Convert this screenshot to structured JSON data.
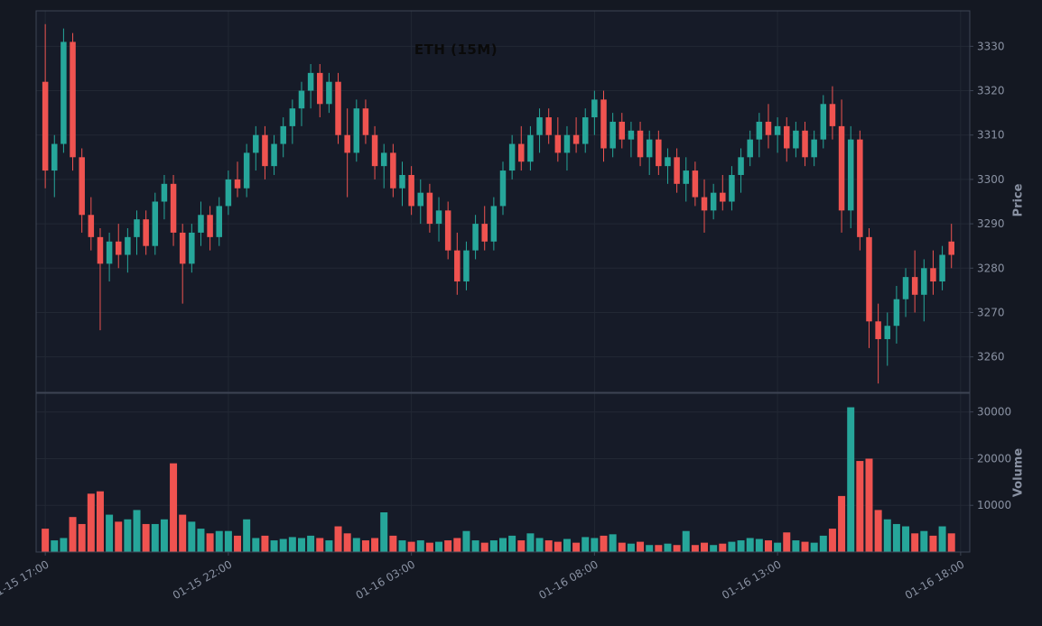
{
  "chart_data": {
    "type": "candlestick",
    "title": "ETH (15M)",
    "symbol": "ETH",
    "interval": "15M",
    "price_axis_label": "Price",
    "volume_axis_label": "Volume",
    "legend_position": "none",
    "grid": true,
    "x_tick_labels": [
      "01-15 17:00",
      "01-15 22:00",
      "01-16 03:00",
      "01-16 08:00",
      "01-16 13:00",
      "01-16 18:00"
    ],
    "x_tick_indices": [
      0,
      20,
      40,
      60,
      80,
      100
    ],
    "price_ticks": [
      3260,
      3270,
      3280,
      3290,
      3300,
      3310,
      3320,
      3330
    ],
    "volume_ticks": [
      10000,
      20000,
      30000
    ],
    "price_range": [
      3252,
      3338
    ],
    "volume_range": [
      0,
      34000
    ],
    "colors": {
      "up": "#26a69a",
      "down": "#ef5350",
      "figure_background": "#141822",
      "axes_background": "#161b28",
      "grid": "#222834",
      "spine": "#3d4454",
      "tick_text": "#8a92a3",
      "title_text": "#0a0a0a"
    },
    "candles": [
      [
        3322,
        3335,
        3298,
        3302
      ],
      [
        3302,
        3310,
        3296,
        3308
      ],
      [
        3308,
        3334,
        3306,
        3331
      ],
      [
        3331,
        3333,
        3302,
        3305
      ],
      [
        3305,
        3307,
        3288,
        3292
      ],
      [
        3292,
        3296,
        3284,
        3287
      ],
      [
        3287,
        3289,
        3266,
        3281
      ],
      [
        3281,
        3288,
        3277,
        3286
      ],
      [
        3286,
        3290,
        3280,
        3283
      ],
      [
        3283,
        3289,
        3279,
        3287
      ],
      [
        3287,
        3293,
        3283,
        3291
      ],
      [
        3291,
        3293,
        3283,
        3285
      ],
      [
        3285,
        3297,
        3283,
        3295
      ],
      [
        3295,
        3301,
        3291,
        3299
      ],
      [
        3299,
        3301,
        3285,
        3288
      ],
      [
        3288,
        3290,
        3272,
        3281
      ],
      [
        3281,
        3290,
        3279,
        3288
      ],
      [
        3288,
        3295,
        3285,
        3292
      ],
      [
        3292,
        3294,
        3284,
        3287
      ],
      [
        3287,
        3296,
        3285,
        3294
      ],
      [
        3294,
        3302,
        3292,
        3300
      ],
      [
        3300,
        3304,
        3296,
        3298
      ],
      [
        3298,
        3308,
        3296,
        3306
      ],
      [
        3306,
        3312,
        3302,
        3310
      ],
      [
        3310,
        3312,
        3300,
        3303
      ],
      [
        3303,
        3310,
        3301,
        3308
      ],
      [
        3308,
        3314,
        3305,
        3312
      ],
      [
        3312,
        3318,
        3308,
        3316
      ],
      [
        3316,
        3322,
        3312,
        3320
      ],
      [
        3320,
        3326,
        3316,
        3324
      ],
      [
        3324,
        3326,
        3314,
        3317
      ],
      [
        3317,
        3324,
        3315,
        3322
      ],
      [
        3322,
        3324,
        3308,
        3310
      ],
      [
        3310,
        3316,
        3296,
        3306
      ],
      [
        3306,
        3318,
        3304,
        3316
      ],
      [
        3316,
        3318,
        3308,
        3310
      ],
      [
        3310,
        3312,
        3300,
        3303
      ],
      [
        3303,
        3308,
        3298,
        3306
      ],
      [
        3306,
        3308,
        3296,
        3298
      ],
      [
        3298,
        3304,
        3294,
        3301
      ],
      [
        3301,
        3303,
        3292,
        3294
      ],
      [
        3294,
        3300,
        3290,
        3297
      ],
      [
        3297,
        3299,
        3288,
        3290
      ],
      [
        3290,
        3296,
        3286,
        3293
      ],
      [
        3293,
        3295,
        3282,
        3284
      ],
      [
        3284,
        3288,
        3274,
        3277
      ],
      [
        3277,
        3286,
        3275,
        3284
      ],
      [
        3284,
        3292,
        3282,
        3290
      ],
      [
        3290,
        3294,
        3284,
        3286
      ],
      [
        3286,
        3296,
        3284,
        3294
      ],
      [
        3294,
        3304,
        3292,
        3302
      ],
      [
        3302,
        3310,
        3300,
        3308
      ],
      [
        3308,
        3312,
        3302,
        3304
      ],
      [
        3304,
        3312,
        3302,
        3310
      ],
      [
        3310,
        3316,
        3306,
        3314
      ],
      [
        3314,
        3316,
        3308,
        3310
      ],
      [
        3310,
        3314,
        3304,
        3306
      ],
      [
        3306,
        3312,
        3302,
        3310
      ],
      [
        3310,
        3314,
        3306,
        3308
      ],
      [
        3308,
        3316,
        3306,
        3314
      ],
      [
        3314,
        3320,
        3310,
        3318
      ],
      [
        3318,
        3320,
        3304,
        3307
      ],
      [
        3307,
        3315,
        3305,
        3313
      ],
      [
        3313,
        3315,
        3307,
        3309
      ],
      [
        3309,
        3313,
        3305,
        3311
      ],
      [
        3311,
        3313,
        3303,
        3305
      ],
      [
        3305,
        3311,
        3301,
        3309
      ],
      [
        3309,
        3311,
        3301,
        3303
      ],
      [
        3303,
        3307,
        3299,
        3305
      ],
      [
        3305,
        3307,
        3297,
        3299
      ],
      [
        3299,
        3305,
        3295,
        3302
      ],
      [
        3302,
        3304,
        3294,
        3296
      ],
      [
        3296,
        3300,
        3288,
        3293
      ],
      [
        3293,
        3299,
        3291,
        3297
      ],
      [
        3297,
        3301,
        3293,
        3295
      ],
      [
        3295,
        3303,
        3293,
        3301
      ],
      [
        3301,
        3307,
        3297,
        3305
      ],
      [
        3305,
        3311,
        3303,
        3309
      ],
      [
        3309,
        3315,
        3305,
        3313
      ],
      [
        3313,
        3317,
        3307,
        3310
      ],
      [
        3310,
        3314,
        3306,
        3312
      ],
      [
        3312,
        3314,
        3304,
        3307
      ],
      [
        3307,
        3313,
        3305,
        3311
      ],
      [
        3311,
        3313,
        3303,
        3305
      ],
      [
        3305,
        3311,
        3303,
        3309
      ],
      [
        3309,
        3319,
        3307,
        3317
      ],
      [
        3317,
        3321,
        3309,
        3312
      ],
      [
        3312,
        3318,
        3288,
        3293
      ],
      [
        3293,
        3312,
        3289,
        3309
      ],
      [
        3309,
        3311,
        3284,
        3287
      ],
      [
        3287,
        3289,
        3262,
        3268
      ],
      [
        3268,
        3272,
        3254,
        3264
      ],
      [
        3264,
        3270,
        3258,
        3267
      ],
      [
        3267,
        3276,
        3263,
        3273
      ],
      [
        3273,
        3280,
        3269,
        3278
      ],
      [
        3278,
        3284,
        3270,
        3274
      ],
      [
        3274,
        3282,
        3268,
        3280
      ],
      [
        3280,
        3284,
        3274,
        3277
      ],
      [
        3277,
        3285,
        3275,
        3283
      ],
      [
        3286,
        3290,
        3280,
        3283
      ]
    ],
    "volumes": [
      5000,
      2500,
      3000,
      7500,
      6000,
      12500,
      13000,
      8000,
      6500,
      7000,
      9000,
      6000,
      6000,
      7000,
      19000,
      8000,
      6500,
      5000,
      4000,
      4500,
      4500,
      3500,
      7000,
      3000,
      3500,
      2500,
      2800,
      3200,
      3000,
      3500,
      3000,
      2500,
      5500,
      4000,
      3000,
      2500,
      3000,
      8500,
      3500,
      2500,
      2200,
      2500,
      2000,
      2200,
      2500,
      3000,
      4500,
      2500,
      2000,
      2500,
      3000,
      3500,
      2500,
      4000,
      3000,
      2500,
      2200,
      2800,
      2000,
      3200,
      3000,
      3500,
      3800,
      2000,
      1800,
      2200,
      1500,
      1500,
      1800,
      1500,
      4500,
      1500,
      2000,
      1500,
      1800,
      2200,
      2500,
      3000,
      2800,
      2500,
      2000,
      4200,
      2500,
      2200,
      2000,
      3500,
      5000,
      12000,
      31000,
      19500,
      20000,
      9000,
      7000,
      6000,
      5500,
      4000,
      4500,
      3500,
      5500,
      4000
    ]
  }
}
